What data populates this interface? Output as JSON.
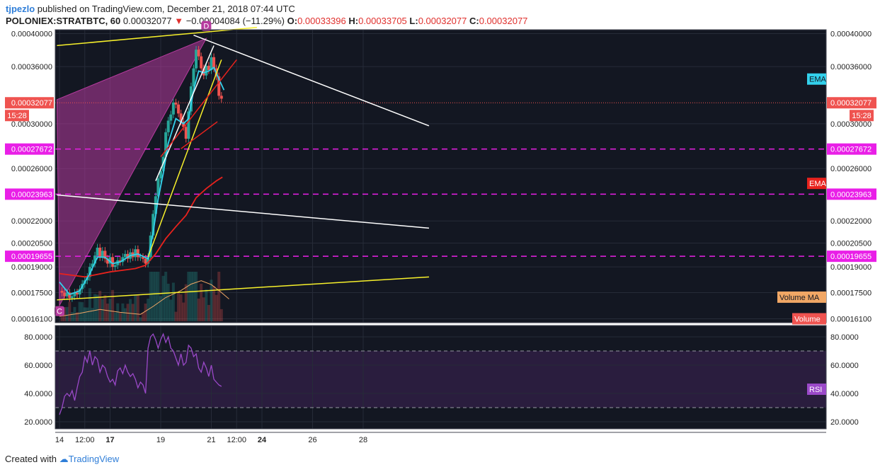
{
  "header": {
    "author": "tjpezlo",
    "published": "published on TradingView.com, December 21, 2018 07:44 UTC",
    "symbol": "POLONIEX:STRATBTC, 60",
    "last": "0.00032077",
    "change_arrow": "▼",
    "change": "−0.00004084 (−11.29%)",
    "o_label": "O:",
    "o_value": "0.00033396",
    "h_label": "H:",
    "h_value": "0.00033705",
    "l_label": "L:",
    "l_value": "0.00032077",
    "c_label": "C:",
    "c_value": "0.00032077"
  },
  "footer": {
    "created": "Created with",
    "brand": "TradingView"
  },
  "colors": {
    "background": "#131722",
    "up": "#26a69a",
    "down": "#ef5350",
    "ema_fast": "#33d1ec",
    "ema_slow": "#e8221d",
    "rsi": "#9b49c9",
    "volume_ma": "#f1a765",
    "magenta_level": "#e91fe7",
    "pattern_fill": "#b73b9f",
    "trend_yellow": "#f7f02b",
    "trend_white": "#ffffff",
    "trend_red": "#e8221d"
  },
  "chart_data": {
    "type": "candlestick",
    "price_axis": {
      "ticks": [
        "0.00040000",
        "0.00036000",
        "0.00030000",
        "0.00026000",
        "0.00022000",
        "0.00020500",
        "0.00019000",
        "0.00017500",
        "0.00016100"
      ],
      "range": [
        0.000159,
        0.000405
      ],
      "scale": "log"
    },
    "time_axis": {
      "labels": [
        {
          "text": "14",
          "bold": false,
          "t": 0
        },
        {
          "text": "12:00",
          "bold": false,
          "t": 0.5
        },
        {
          "text": "17",
          "bold": true,
          "t": 1
        },
        {
          "text": "19",
          "bold": false,
          "t": 2
        },
        {
          "text": "21",
          "bold": false,
          "t": 3
        },
        {
          "text": "12:00",
          "bold": false,
          "t": 3.5
        },
        {
          "text": "24",
          "bold": true,
          "t": 4
        },
        {
          "text": "26",
          "bold": false,
          "t": 5
        },
        {
          "text": "28",
          "bold": false,
          "t": 6
        }
      ]
    },
    "price_tags": [
      {
        "text": "0.00032077",
        "value": 0.00032077,
        "kind": "last"
      },
      {
        "text": "0.00027672",
        "value": 0.00027672,
        "kind": "level"
      },
      {
        "text": "0.00023963",
        "value": 0.00023963,
        "kind": "level"
      },
      {
        "text": "0.00019655",
        "value": 0.00019655,
        "kind": "level"
      }
    ],
    "countdown": "15:28",
    "price_path": [
      [
        0.0,
        0.000176
      ],
      [
        0.05,
        0.000175
      ],
      [
        0.1,
        0.000173
      ],
      [
        0.15,
        0.000175
      ],
      [
        0.2,
        0.000172
      ],
      [
        0.25,
        0.000173
      ],
      [
        0.3,
        0.000175
      ],
      [
        0.35,
        0.000174
      ],
      [
        0.4,
        0.000177
      ],
      [
        0.45,
        0.00018
      ],
      [
        0.5,
        0.000182
      ],
      [
        0.55,
        0.000184
      ],
      [
        0.6,
        0.00019
      ],
      [
        0.65,
        0.000192
      ],
      [
        0.7,
        0.000197
      ],
      [
        0.75,
        0.000202
      ],
      [
        0.8,
        0.000196
      ],
      [
        0.85,
        0.0002
      ],
      [
        0.9,
        0.000195
      ],
      [
        0.95,
        0.000192
      ],
      [
        1.0,
        0.000196
      ],
      [
        1.05,
        0.00019
      ],
      [
        1.1,
        0.000191
      ],
      [
        1.15,
        0.000194
      ],
      [
        1.2,
        0.000193
      ],
      [
        1.25,
        0.000196
      ],
      [
        1.3,
        0.000198
      ],
      [
        1.35,
        0.000195
      ],
      [
        1.4,
        0.000199
      ],
      [
        1.45,
        0.000196
      ],
      [
        1.5,
        0.000201
      ],
      [
        1.55,
        0.000196
      ],
      [
        1.6,
        0.000196
      ],
      [
        1.65,
        0.000195
      ],
      [
        1.7,
        0.000192
      ],
      [
        1.75,
        0.000196
      ],
      [
        1.8,
        0.00021
      ],
      [
        1.85,
        0.000225
      ],
      [
        1.9,
        0.000238
      ],
      [
        1.95,
        0.000252
      ],
      [
        2.0,
        0.000258
      ],
      [
        2.05,
        0.00027
      ],
      [
        2.1,
        0.000292
      ],
      [
        2.15,
        0.000303
      ],
      [
        2.2,
        0.000309
      ],
      [
        2.25,
        0.000321
      ],
      [
        2.3,
        0.000319
      ],
      [
        2.35,
        0.00031
      ],
      [
        2.4,
        0.000302
      ],
      [
        2.45,
        0.000297
      ],
      [
        2.5,
        0.000286
      ],
      [
        2.55,
        0.000312
      ],
      [
        2.6,
        0.000338
      ],
      [
        2.65,
        0.000358
      ],
      [
        2.7,
        0.00038
      ],
      [
        2.75,
        0.000372
      ],
      [
        2.8,
        0.000358
      ],
      [
        2.85,
        0.00035
      ],
      [
        2.9,
        0.000361
      ],
      [
        2.95,
        0.000356
      ],
      [
        3.0,
        0.000371
      ],
      [
        3.05,
        0.000358
      ],
      [
        3.1,
        0.000349
      ],
      [
        3.15,
        0.000328
      ],
      [
        3.2,
        0.000325
      ]
    ],
    "ema_fast": [
      [
        0.0,
        0.000181
      ],
      [
        0.2,
        0.000174
      ],
      [
        0.4,
        0.000176
      ],
      [
        0.6,
        0.000186
      ],
      [
        0.75,
        0.000196
      ],
      [
        0.9,
        0.000196
      ],
      [
        1.05,
        0.000192
      ],
      [
        1.2,
        0.000193
      ],
      [
        1.4,
        0.000197
      ],
      [
        1.55,
        0.000198
      ],
      [
        1.75,
        0.000195
      ],
      [
        1.85,
        0.000212
      ],
      [
        1.95,
        0.000236
      ],
      [
        2.05,
        0.000256
      ],
      [
        2.15,
        0.000282
      ],
      [
        2.3,
        0.000305
      ],
      [
        2.45,
        0.0003
      ],
      [
        2.55,
        0.000305
      ],
      [
        2.65,
        0.000334
      ],
      [
        2.75,
        0.000355
      ],
      [
        2.85,
        0.000353
      ],
      [
        2.95,
        0.000355
      ],
      [
        3.05,
        0.000359
      ],
      [
        3.15,
        0.000346
      ],
      [
        3.25,
        0.000334
      ]
    ],
    "ema_slow": [
      [
        0.0,
        0.000186
      ],
      [
        0.5,
        0.000184
      ],
      [
        1.0,
        0.000187
      ],
      [
        1.5,
        0.000189
      ],
      [
        1.7,
        0.000191
      ],
      [
        1.9,
        0.000198
      ],
      [
        2.1,
        0.000208
      ],
      [
        2.3,
        0.000216
      ],
      [
        2.5,
        0.000224
      ],
      [
        2.7,
        0.000237
      ],
      [
        2.9,
        0.000244
      ],
      [
        3.1,
        0.00025
      ],
      [
        3.22,
        0.000253
      ]
    ],
    "volume_ma": [
      [
        0.0,
        0.1
      ],
      [
        0.4,
        0.16
      ],
      [
        0.8,
        0.24
      ],
      [
        1.2,
        0.18
      ],
      [
        1.6,
        0.14
      ],
      [
        1.85,
        0.3
      ],
      [
        2.1,
        0.48
      ],
      [
        2.4,
        0.62
      ],
      [
        2.6,
        0.75
      ],
      [
        2.8,
        0.82
      ],
      [
        3.0,
        0.74
      ],
      [
        3.2,
        0.58
      ],
      [
        3.35,
        0.45
      ]
    ],
    "rsi": {
      "ticks": [
        "80.0000",
        "60.0000",
        "40.0000",
        "20.0000"
      ],
      "range": [
        15,
        88
      ],
      "band": [
        30,
        70
      ],
      "values": [
        [
          0.0,
          25
        ],
        [
          0.05,
          30
        ],
        [
          0.1,
          38
        ],
        [
          0.15,
          40
        ],
        [
          0.2,
          38
        ],
        [
          0.25,
          42
        ],
        [
          0.3,
          35
        ],
        [
          0.35,
          44
        ],
        [
          0.4,
          52
        ],
        [
          0.45,
          55
        ],
        [
          0.5,
          66
        ],
        [
          0.55,
          62
        ],
        [
          0.6,
          70
        ],
        [
          0.65,
          60
        ],
        [
          0.7,
          66
        ],
        [
          0.75,
          64
        ],
        [
          0.8,
          55
        ],
        [
          0.85,
          60
        ],
        [
          0.9,
          58
        ],
        [
          0.95,
          52
        ],
        [
          1.0,
          48
        ],
        [
          1.05,
          50
        ],
        [
          1.1,
          46
        ],
        [
          1.15,
          56
        ],
        [
          1.2,
          58
        ],
        [
          1.25,
          54
        ],
        [
          1.3,
          60
        ],
        [
          1.35,
          55
        ],
        [
          1.4,
          52
        ],
        [
          1.45,
          54
        ],
        [
          1.5,
          50
        ],
        [
          1.55,
          44
        ],
        [
          1.6,
          48
        ],
        [
          1.65,
          46
        ],
        [
          1.7,
          40
        ],
        [
          1.75,
          72
        ],
        [
          1.8,
          80
        ],
        [
          1.85,
          82
        ],
        [
          1.9,
          78
        ],
        [
          1.95,
          72
        ],
        [
          2.0,
          78
        ],
        [
          2.05,
          82
        ],
        [
          2.1,
          76
        ],
        [
          2.15,
          80
        ],
        [
          2.2,
          72
        ],
        [
          2.25,
          70
        ],
        [
          2.3,
          65
        ],
        [
          2.35,
          60
        ],
        [
          2.4,
          68
        ],
        [
          2.45,
          60
        ],
        [
          2.5,
          62
        ],
        [
          2.55,
          74
        ],
        [
          2.6,
          72
        ],
        [
          2.65,
          66
        ],
        [
          2.7,
          68
        ],
        [
          2.75,
          58
        ],
        [
          2.8,
          55
        ],
        [
          2.85,
          62
        ],
        [
          2.9,
          58
        ],
        [
          2.95,
          52
        ],
        [
          3.0,
          60
        ],
        [
          3.05,
          50
        ],
        [
          3.1,
          48
        ],
        [
          3.15,
          46
        ],
        [
          3.2,
          45
        ]
      ]
    },
    "drawings": [
      {
        "kind": "segment",
        "color": "trend_yellow",
        "from": [
          -0.05,
          0.000385
        ],
        "to": [
          3.9,
          0.000408
        ]
      },
      {
        "kind": "segment",
        "color": "trend_yellow",
        "from": [
          -0.05,
          0.000171
        ],
        "to": [
          7.3,
          0.000184
        ]
      },
      {
        "kind": "segment",
        "color": "trend_white",
        "from": [
          -0.05,
          0.000239
        ],
        "to": [
          7.3,
          0.000215
        ]
      },
      {
        "kind": "segment",
        "color": "trend_white",
        "from": [
          2.65,
          0.000398
        ],
        "to": [
          7.3,
          0.000298
        ]
      },
      {
        "kind": "segment",
        "color": "trend_white",
        "from": [
          1.9,
          0.00025
        ],
        "to": [
          3.05,
          0.000385
        ]
      },
      {
        "kind": "segment",
        "color": "trend_yellow",
        "from": [
          1.75,
          0.000196
        ],
        "to": [
          3.2,
          0.000368
        ]
      },
      {
        "kind": "segment",
        "color": "trend_red",
        "from": [
          2.0,
          0.00027
        ],
        "to": [
          3.5,
          0.000368
        ]
      },
      {
        "kind": "segment",
        "color": "trend_red",
        "from": [
          2.4,
          0.000277
        ],
        "to": [
          3.12,
          0.000302
        ]
      }
    ],
    "pattern": {
      "points": [
        [
          -0.05,
          0.000324
        ],
        [
          2.9,
          0.000394
        ],
        [
          0.0,
          0.000168
        ]
      ],
      "labels": [
        {
          "text": "D",
          "at": [
            2.9,
            0.00041
          ]
        },
        {
          "text": "C",
          "at": [
            0.0,
            0.000165
          ]
        }
      ]
    },
    "legend": [
      {
        "text": "EMA",
        "color": "ema_fast",
        "value": 0.000346
      },
      {
        "text": "EMA",
        "color": "ema_slow",
        "value": 0.000248
      },
      {
        "text": "Volume MA",
        "color": "volume_ma",
        "value": 0.0001725
      },
      {
        "text": "Volume",
        "color": "down",
        "value": 0.000161
      },
      {
        "text": "RSI",
        "color": "rsi",
        "value": 43
      }
    ]
  }
}
